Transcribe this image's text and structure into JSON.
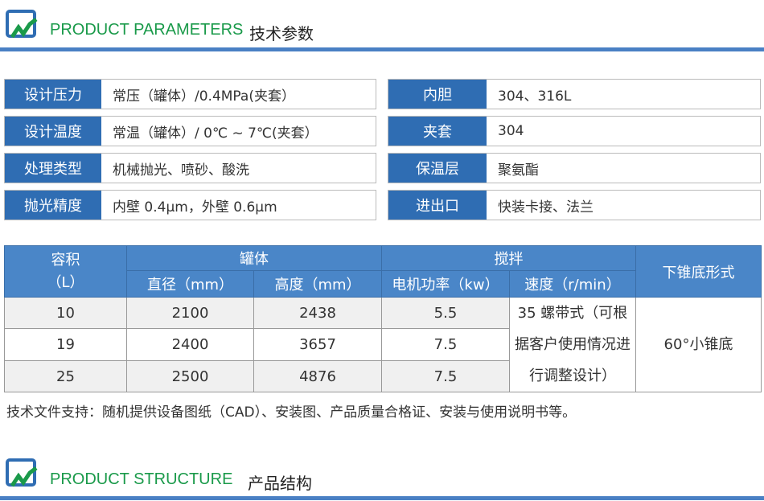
{
  "section1": {
    "title_en": "PRODUCT PARAMETERS",
    "title_cn": "技术参数",
    "logo": "company-logo"
  },
  "params_left": [
    {
      "label": "设计压力",
      "value": "常压（罐体）/0.4MPa(夹套）"
    },
    {
      "label": "设计温度",
      "value": "常温（罐体）/ 0℃ ~ 7℃(夹套）"
    },
    {
      "label": "处理类型",
      "value": "机械抛光、喷砂、酸洗"
    },
    {
      "label": "抛光精度",
      "value": "内壁 0.4μm，外壁 0.6μm"
    }
  ],
  "params_right": [
    {
      "label": "内胆",
      "value": "304、316L"
    },
    {
      "label": "夹套",
      "value": "304"
    },
    {
      "label": "保温层",
      "value": "聚氨酯"
    },
    {
      "label": "进出口",
      "value": "快装卡接、法兰"
    }
  ],
  "table": {
    "h_volume": "容积",
    "h_volume_unit": "（L）",
    "h_tank": "罐体",
    "h_mix": "搅拌",
    "h_cone": "下锥底形式",
    "h_diameter": "直径（mm）",
    "h_height": "高度（mm）",
    "h_power": "电机功率（kw）",
    "h_speed": "速度（r/min）",
    "rows": [
      {
        "volume": "10",
        "diameter": "2100",
        "height": "2438",
        "power": "5.5"
      },
      {
        "volume": "19",
        "diameter": "2400",
        "height": "3657",
        "power": "7.5"
      },
      {
        "volume": "25",
        "diameter": "2500",
        "height": "4876",
        "power": "7.5"
      }
    ],
    "speed": "35 螺带式（可根据客户使用情况进行调整设计）",
    "cone": "60°小锥底"
  },
  "footer": "技术文件支持：随机提供设备图纸（CAD）、安装图、产品质量合格证、安装与使用说明书等。",
  "section2": {
    "title_en": "PRODUCT STRUCTURE",
    "title_cn": "产品结构",
    "logo": "company-logo"
  },
  "colors": {
    "accent_blue": "#2f6db3",
    "header_blue": "#4a86c8",
    "title_green": "#1a9a4a",
    "line_blue": "#4a80c4"
  }
}
